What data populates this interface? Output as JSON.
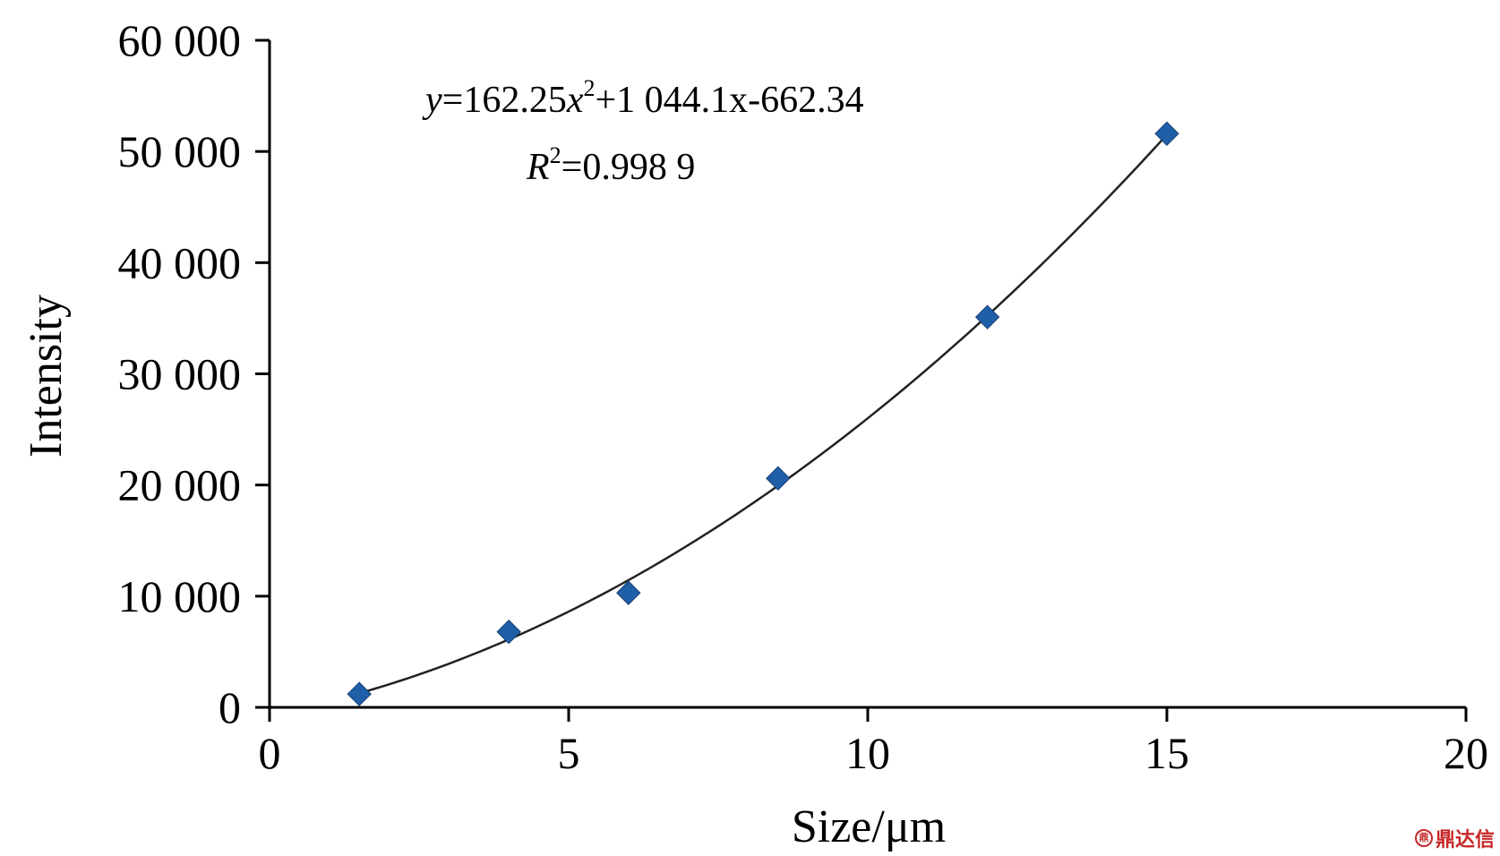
{
  "chart_data": {
    "type": "scatter",
    "xlabel": "Size/μm",
    "ylabel": "Intensity",
    "xlim": [
      0,
      20
    ],
    "ylim": [
      0,
      60000
    ],
    "x_ticks": [
      0,
      5,
      10,
      15,
      20
    ],
    "x_tick_labels": [
      "0",
      "5",
      "10",
      "15",
      "20"
    ],
    "y_ticks": [
      0,
      10000,
      20000,
      30000,
      40000,
      50000,
      60000
    ],
    "y_tick_labels": [
      "0",
      "10 000",
      "20 000",
      "30 000",
      "40 000",
      "50 000",
      "60 000"
    ],
    "grid": false,
    "series": [
      {
        "marker": "diamond",
        "color": "#1f5fa8",
        "points": [
          {
            "x": 1.5,
            "y": 1200
          },
          {
            "x": 4.0,
            "y": 6800
          },
          {
            "x": 6.0,
            "y": 10300
          },
          {
            "x": 8.5,
            "y": 20600
          },
          {
            "x": 12.0,
            "y": 35100
          },
          {
            "x": 15.0,
            "y": 51600
          }
        ]
      }
    ],
    "trendline": {
      "type": "polynomial",
      "coefficients": [
        162.25,
        1044.1,
        -662.34
      ],
      "x_range": [
        1.5,
        15.0
      ],
      "color": "#222222"
    },
    "annotation": {
      "equation": {
        "y": "y",
        "eq1": "=162.25",
        "x": "x",
        "sup": "2",
        "rest": "+1 044.1x-662.34"
      },
      "r2": {
        "r": "R",
        "sup": "2",
        "rest": "=0.998 9"
      }
    }
  },
  "watermark": {
    "seal": "鼎",
    "text": "鼎达信"
  }
}
